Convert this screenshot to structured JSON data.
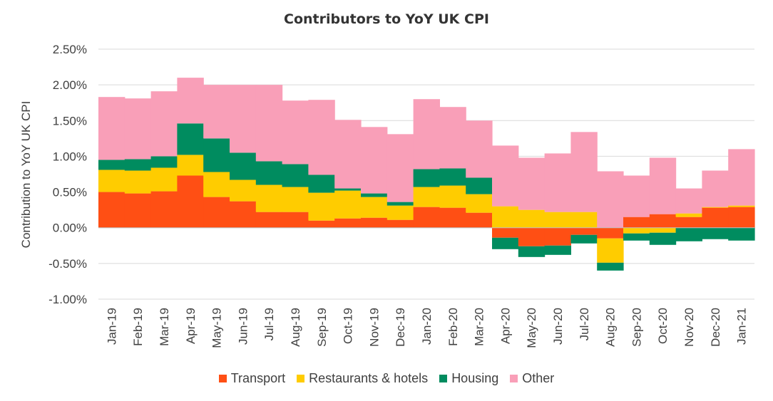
{
  "chart_data": {
    "type": "bar",
    "stacked": true,
    "title": "Contributors to YoY UK CPI",
    "ylabel": "Contribution to YoY UK CPI",
    "xlabel": "",
    "ylim": [
      -0.01,
      0.025
    ],
    "yticks": [
      "2.50%",
      "2.00%",
      "1.50%",
      "1.00%",
      "0.50%",
      "0.00%",
      "-0.50%",
      "-1.00%"
    ],
    "ytick_values": [
      0.025,
      0.02,
      0.015,
      0.01,
      0.005,
      0.0,
      -0.005,
      -0.01
    ],
    "grid": true,
    "legend_position": "bottom",
    "categories": [
      "Jan-19",
      "Feb-19",
      "Mar-19",
      "Apr-19",
      "May-19",
      "Jun-19",
      "Jul-19",
      "Aug-19",
      "Sep-19",
      "Oct-19",
      "Nov-19",
      "Dec-19",
      "Jan-20",
      "Feb-20",
      "Mar-20",
      "Apr-20",
      "May-20",
      "Jun-20",
      "Jul-20",
      "Aug-20",
      "Sep-20",
      "Oct-20",
      "Nov-20",
      "Dec-20",
      "Jan-21"
    ],
    "series": [
      {
        "name": "Transport",
        "color": "#ff4f14",
        "values": [
          0.005,
          0.0048,
          0.0051,
          0.0073,
          0.0043,
          0.0037,
          0.0022,
          0.0022,
          0.001,
          0.0013,
          0.0014,
          0.0011,
          0.0029,
          0.0028,
          0.0021,
          -0.0014,
          -0.0026,
          -0.0025,
          -0.001,
          -0.0015,
          0.0015,
          0.0019,
          0.0015,
          0.0028,
          0.0029
        ]
      },
      {
        "name": "Restaurants & hotels",
        "color": "#ffcc00",
        "values": [
          0.0031,
          0.0032,
          0.0033,
          0.0029,
          0.0035,
          0.003,
          0.0038,
          0.0035,
          0.0039,
          0.0039,
          0.0029,
          0.002,
          0.0028,
          0.0031,
          0.0026,
          0.003,
          0.0025,
          0.0022,
          0.0022,
          -0.0034,
          -0.0008,
          -0.0007,
          0.0005,
          0.0001,
          0.0002
        ]
      },
      {
        "name": "Housing",
        "color": "#008c5f",
        "values": [
          0.0014,
          0.0016,
          0.0016,
          0.0044,
          0.0047,
          0.0038,
          0.0033,
          0.0032,
          0.0025,
          0.0003,
          0.0005,
          0.0005,
          0.0025,
          0.0024,
          0.0023,
          -0.0016,
          -0.0015,
          -0.0013,
          -0.0012,
          -0.0011,
          -0.001,
          -0.0017,
          -0.0019,
          -0.0016,
          -0.0018
        ]
      },
      {
        "name": "Other",
        "color": "#f99fb8",
        "values": [
          0.0088,
          0.0085,
          0.0091,
          0.0064,
          0.0075,
          0.0095,
          0.0107,
          0.0089,
          0.0105,
          0.0096,
          0.0093,
          0.0095,
          0.0098,
          0.0086,
          0.008,
          0.0085,
          0.0073,
          0.0082,
          0.0112,
          0.0079,
          0.0058,
          0.0079,
          0.0035,
          0.0051,
          0.0079
        ]
      }
    ]
  }
}
